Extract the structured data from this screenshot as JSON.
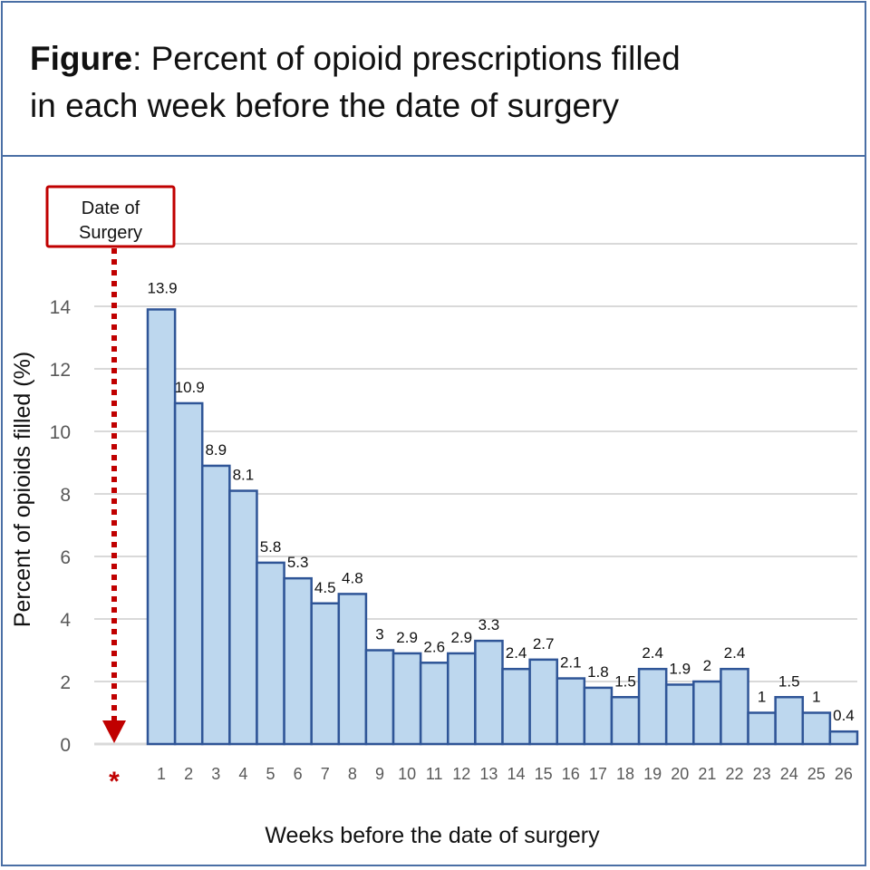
{
  "title": {
    "bold": "Figure",
    "rest": ": Percent of opioid prescriptions filled",
    "line2": "in each week before the date of surgery"
  },
  "annotation": {
    "line1": "Date of",
    "line2": "Surgery",
    "marker": "*",
    "color": "#c00000"
  },
  "chart_data": {
    "type": "bar",
    "categories": [
      "1",
      "2",
      "3",
      "4",
      "5",
      "6",
      "7",
      "8",
      "9",
      "10",
      "11",
      "12",
      "13",
      "14",
      "15",
      "16",
      "17",
      "18",
      "19",
      "20",
      "21",
      "22",
      "23",
      "24",
      "25",
      "26"
    ],
    "values": [
      13.9,
      10.9,
      8.9,
      8.1,
      5.8,
      5.3,
      4.5,
      4.8,
      3,
      2.9,
      2.6,
      2.9,
      3.3,
      2.4,
      2.7,
      2.1,
      1.8,
      1.5,
      2.4,
      1.9,
      2,
      2.4,
      1,
      1.5,
      1,
      0.4
    ],
    "xlabel": "Weeks before the date of surgery",
    "ylabel": "Percent of opioids filled (%)",
    "ylim": [
      0,
      16
    ],
    "yticks": [
      0,
      2,
      4,
      6,
      8,
      10,
      12,
      14
    ],
    "grid": true,
    "bar_fill": "#bdd7ee",
    "bar_edge": "#2f5597"
  }
}
